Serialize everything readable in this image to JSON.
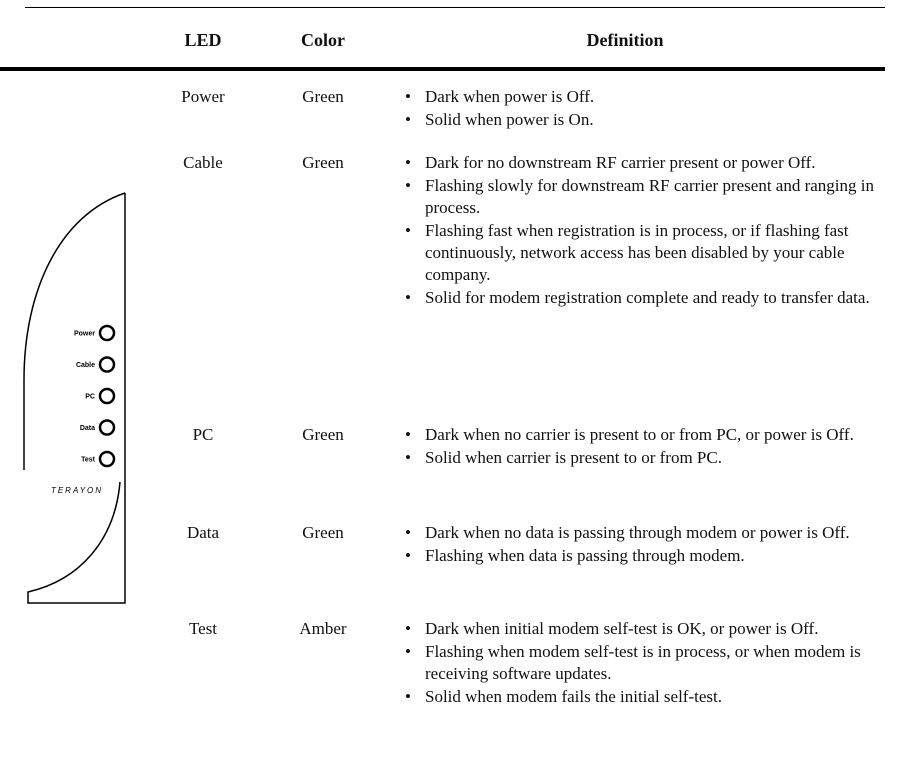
{
  "table": {
    "columns": [
      "LED",
      "Color",
      "Definition"
    ],
    "rows": [
      {
        "led": "Power",
        "color": "Green",
        "definition": [
          "Dark when power is Off.",
          "Solid when power is On."
        ]
      },
      {
        "led": "Cable",
        "color": "Green",
        "definition": [
          "Dark for no downstream RF carrier present or power Off.",
          "Flashing slowly for downstream RF carrier present and ranging in process.",
          "Flashing fast when registration is in process, or if flashing fast continuously, network access has been disabled by your cable company.",
          "Solid for modem registration complete and ready to transfer data."
        ]
      },
      {
        "led": "PC",
        "color": "Green",
        "definition": [
          "Dark when no carrier is present to or from PC, or power is Off.",
          "Solid when carrier is present to or from PC."
        ]
      },
      {
        "led": "Data",
        "color": "Green",
        "definition": [
          "Dark when no data is passing through modem or power is Off.",
          "Flashing when data is passing through modem."
        ]
      },
      {
        "led": "Test",
        "color": "Amber",
        "definition": [
          "Dark when initial modem self-test is OK, or power is Off.",
          "Flashing when modem self-test is in process, or when modem is receiving software updates.",
          "Solid when modem fails the initial self-test."
        ]
      }
    ]
  },
  "panel": {
    "labels": [
      "Power",
      "Cable",
      "PC",
      "Data",
      "Test"
    ],
    "logo": "TERAYON"
  }
}
